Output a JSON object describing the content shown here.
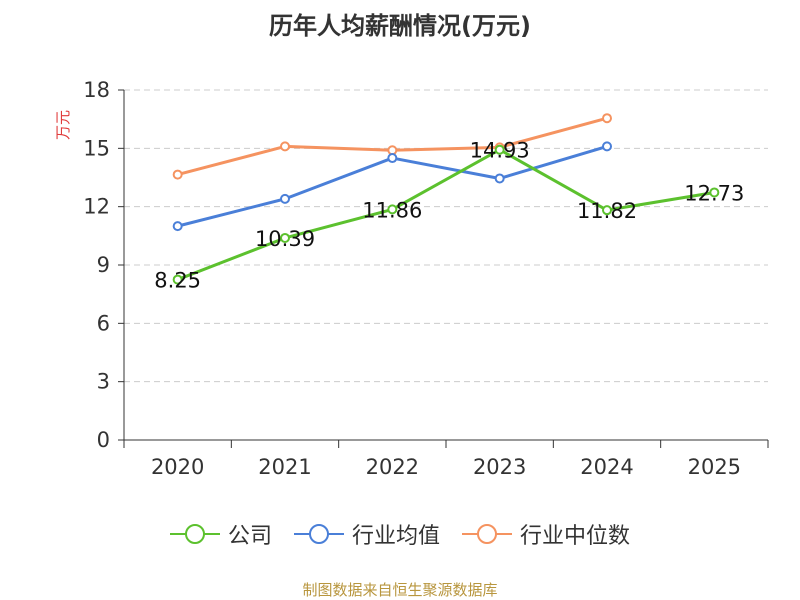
{
  "chart_data": {
    "type": "line",
    "title": "历年人均薪酬情况(万元)",
    "ylabel": "万元",
    "xlabel": "",
    "ylim": [
      0,
      18
    ],
    "yticks": [
      "0",
      "3",
      "6",
      "9",
      "12",
      "15",
      "18"
    ],
    "categories": [
      "2020",
      "2021",
      "2022",
      "2023",
      "2024",
      "2025"
    ],
    "series": [
      {
        "name": "公司",
        "color": "#5cc12e",
        "values": [
          8.25,
          10.39,
          11.86,
          14.93,
          11.82,
          12.73
        ],
        "labels": [
          "8.25",
          "10.39",
          "11.86",
          "14.93",
          "11.82",
          "12.73"
        ]
      },
      {
        "name": "行业均值",
        "color": "#4a7fd8",
        "values": [
          11.0,
          12.4,
          14.5,
          13.45,
          15.1,
          null
        ]
      },
      {
        "name": "行业中位数",
        "color": "#f59360",
        "values": [
          13.65,
          15.1,
          14.9,
          15.05,
          16.55,
          null
        ]
      }
    ],
    "grid": true,
    "legend": "bottom-center"
  },
  "source": "制图数据来自恒生聚源数据库"
}
